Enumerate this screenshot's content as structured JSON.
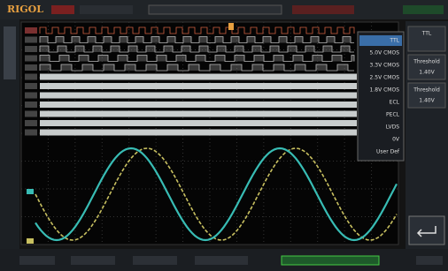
{
  "header": {
    "logo": "RIGOL"
  },
  "threshold_menu": {
    "items": [
      "TTL",
      "5.0V CMOS",
      "3.3V CMOS",
      "2.5V CMOS",
      "1.8V CMOS",
      "ECL",
      "PECL",
      "LVDS",
      "0V",
      "User Def"
    ],
    "selected": 0
  },
  "side_menu": {
    "items": [
      {
        "label": "TTL"
      },
      {
        "label": "Threshold",
        "value": "1.40V"
      },
      {
        "label": "Threshold",
        "value": "1.40V"
      }
    ]
  }
}
